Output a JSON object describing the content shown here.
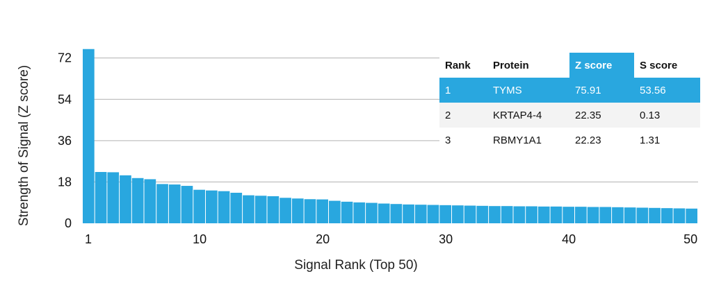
{
  "colors": {
    "bar": "#29a7df",
    "highlight": "#29a7df",
    "grid": "#b0b0b0"
  },
  "chart_data": {
    "type": "bar",
    "title": "",
    "xlabel": "Signal Rank (Top 50)",
    "ylabel": "Strength of Signal (Z score)",
    "ylim": [
      0,
      76
    ],
    "y_ticks": [
      "0",
      "18",
      "36",
      "54",
      "72"
    ],
    "x_ticks": [
      "1",
      "10",
      "20",
      "30",
      "40",
      "50"
    ],
    "grid": "horizontal",
    "categories": [
      1,
      2,
      3,
      4,
      5,
      6,
      7,
      8,
      9,
      10,
      11,
      12,
      13,
      14,
      15,
      16,
      17,
      18,
      19,
      20,
      21,
      22,
      23,
      24,
      25,
      26,
      27,
      28,
      29,
      30,
      31,
      32,
      33,
      34,
      35,
      36,
      37,
      38,
      39,
      40,
      41,
      42,
      43,
      44,
      45,
      46,
      47,
      48,
      49,
      50
    ],
    "values": [
      75.91,
      22.35,
      22.23,
      20.9,
      19.7,
      19.2,
      17.1,
      16.9,
      16.3,
      14.6,
      14.3,
      14.0,
      13.3,
      12.2,
      12.0,
      11.8,
      11.1,
      10.8,
      10.5,
      10.4,
      9.8,
      9.4,
      9.1,
      8.9,
      8.6,
      8.4,
      8.2,
      8.1,
      8.0,
      7.9,
      7.8,
      7.7,
      7.6,
      7.5,
      7.5,
      7.4,
      7.4,
      7.3,
      7.3,
      7.2,
      7.2,
      7.1,
      7.1,
      7.0,
      6.9,
      6.8,
      6.7,
      6.6,
      6.5,
      6.4
    ]
  },
  "table": {
    "headers": [
      "Rank",
      "Protein",
      "Z score",
      "S score"
    ],
    "rows": [
      [
        "1",
        "TYMS",
        "75.91",
        "53.56"
      ],
      [
        "2",
        "KRTAP4-4",
        "22.35",
        "0.13"
      ],
      [
        "3",
        "RBMY1A1",
        "22.23",
        "1.31"
      ]
    ]
  }
}
